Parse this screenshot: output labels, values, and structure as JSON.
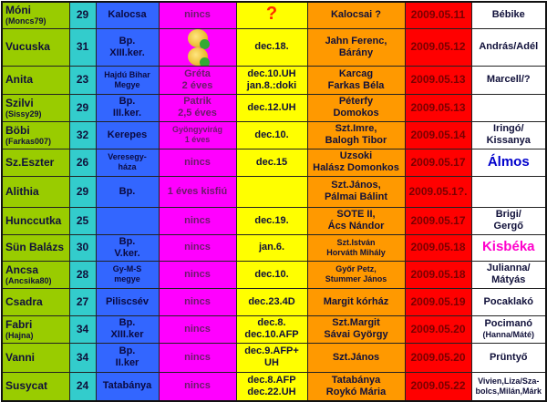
{
  "colors": {
    "name": "#99cc00",
    "age": "#33cccc",
    "city": "#3366ff",
    "kids": "#ff00ff",
    "due": "#ffff00",
    "hospital": "#ff9900",
    "date": "#ff0000",
    "baby": "#ffffff"
  },
  "rows": [
    {
      "name": "Móni",
      "nick": "(Moncs79)",
      "age": "29",
      "city": "Kalocsa",
      "kids": "nincs",
      "due": "?",
      "hospital": "Kalocsai ?",
      "date": "2009.05.11",
      "baby": "Bébike"
    },
    {
      "name": "Vucuska",
      "nick": "",
      "age": "31",
      "city": "Bp.\nXIII.ker.",
      "kids": "",
      "kids_icons": [
        "smiley-icon",
        "smiley-icon"
      ],
      "due": "dec.18.",
      "hospital": "Jahn Ferenc,\nBárány",
      "date": "2009.05.12",
      "baby": "András/Adél"
    },
    {
      "name": "Anita",
      "nick": "",
      "age": "23",
      "city": "Hajdú Bihar\nMegye",
      "kids": "Gréta\n2 éves",
      "due": "dec.10.UH\njan.8.:doki",
      "hospital": "Karcag\nFarkas Béla",
      "date": "2009.05.13",
      "baby": "Marcell/?"
    },
    {
      "name": "Szilvi",
      "nick": "(Sissy29)",
      "age": "29",
      "city": "Bp.\nIII.ker.",
      "kids": "Patrik\n2,5 éves",
      "due": "dec.12.UH",
      "hospital": "Péterfy\nDomokos",
      "date": "2009.05.13",
      "baby": ""
    },
    {
      "name": "Böbi",
      "nick": "(Farkas007)",
      "age": "32",
      "city": "Kerepes",
      "kids": "Gyöngyvirág\n1 éves",
      "due": "dec.10.",
      "hospital": "Szt.Imre,\nBalogh Tibor",
      "date": "2009.05.14",
      "baby": "Iringó/\nKissanya"
    },
    {
      "name": "Sz.Eszter",
      "nick": "",
      "age": "26",
      "city": "Veresegy-\nháza",
      "kids": "nincs",
      "due": "dec.15",
      "hospital": "Uzsoki\nHalász Domonkos",
      "date": "2009.05.17",
      "baby": "Álmos",
      "baby_color": "#0000cc"
    },
    {
      "name": "Alithia",
      "nick": "",
      "age": "29",
      "city": "Bp.",
      "kids": "1 éves kisfiú",
      "due": "",
      "hospital": "Szt.János,\nPálmai Bálint",
      "date": "2009.05.1?.",
      "baby": ""
    },
    {
      "name": "Hunccutka",
      "nick": "",
      "age": "25",
      "city": "",
      "kids": "nincs",
      "due": "dec.19.",
      "hospital": "SOTE II,\nÁcs Nándor",
      "date": "2009.05.17",
      "baby": "Brigi/\nGergő"
    },
    {
      "name": "Sün Balázs",
      "nick": "",
      "age": "30",
      "city": "Bp.\nV.ker.",
      "kids": "nincs",
      "due": "jan.6.",
      "hospital": "Szt.István\nHorváth Mihály",
      "date": "2009.05.18",
      "baby": "Kisbéka",
      "baby_color": "#ff00cc"
    },
    {
      "name": "Ancsa",
      "nick": "(Ancsika80)",
      "age": "28",
      "city": "Gy-M-S\nmegye",
      "kids": "nincs",
      "due": "dec.10.",
      "hospital": "Győr Petz,\nStummer János",
      "date": "2009.05.18",
      "baby": "Julianna/\nMátyás"
    },
    {
      "name": "Csadra",
      "nick": "",
      "age": "27",
      "city": "Piliscsév",
      "kids": "nincs",
      "due": "dec.23.4D",
      "hospital": "Margit kórház",
      "date": "2009.05.19",
      "baby": "Pocaklakó"
    },
    {
      "name": "Fabri",
      "nick": "(Hajna)",
      "age": "34",
      "city": "Bp.\nXIII.ker",
      "kids": "nincs",
      "due": "dec.8.\ndec.10.AFP",
      "hospital": "Szt.Margit\nSávai György",
      "date": "2009.05.20",
      "baby": "Pocimanó",
      "baby_sub": "(Hanna/Máté)"
    },
    {
      "name": "Vanni",
      "nick": "",
      "age": "34",
      "city": "Bp.\nII.ker",
      "kids": "nincs",
      "due": "dec.9.AFP+\nUH",
      "hospital": "Szt.János",
      "date": "2009.05.20",
      "baby": "Prüntyő"
    },
    {
      "name": "Susycat",
      "nick": "",
      "age": "24",
      "city": "Tatabánya",
      "kids": "nincs",
      "due": "dec.8.AFP\ndec.22.UH",
      "hospital": "Tatabánya\nRoykó Mária",
      "date": "2009.05.22",
      "baby": "Vivien,Liza/Sza-\nbolcs,Milán,Márk",
      "baby_small": true
    }
  ]
}
